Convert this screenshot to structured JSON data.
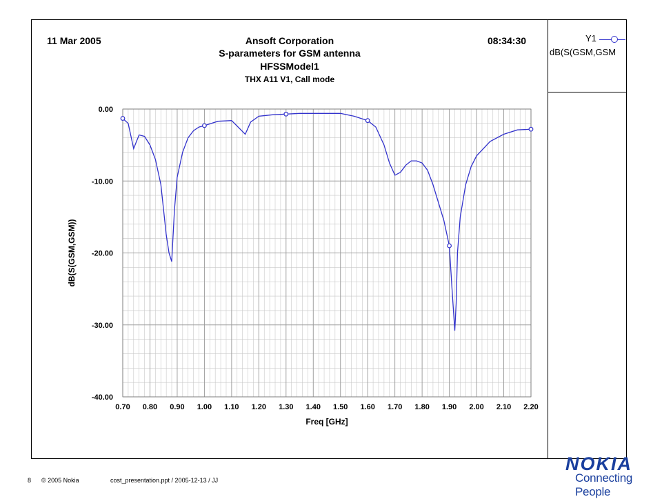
{
  "header": {
    "date": "11 Mar 2005",
    "time": "08:34:30",
    "company": "Ansoft Corporation",
    "title": "S-parameters for GSM antenna",
    "model": "HFSSModel1",
    "subtitle": "THX A11 V1, Call mode"
  },
  "legend": {
    "trace_name": "Y1",
    "expression": "dB(S(GSM,GSM"
  },
  "footer": {
    "page": "8",
    "copyright": "© 2005  Nokia",
    "file": "cost_presentation.ppt / 2005-12-13 / JJ"
  },
  "brand": {
    "logo_text": "NOKIA",
    "tagline": "Connecting People",
    "color": "#1a3f9e"
  },
  "chart_data": {
    "type": "line",
    "xlabel": "Freq [GHz]",
    "ylabel": "dB(S(GSM,GSM))",
    "xlim": [
      0.7,
      2.2
    ],
    "ylim": [
      -40.0,
      0.0
    ],
    "xticks": [
      "0.70",
      "0.80",
      "0.90",
      "1.00",
      "1.10",
      "1.20",
      "1.30",
      "1.40",
      "1.50",
      "1.60",
      "1.70",
      "1.80",
      "1.90",
      "2.00",
      "2.10",
      "2.20"
    ],
    "yticks": [
      "0.00",
      "-10.00",
      "-20.00",
      "-30.00",
      "-40.00"
    ],
    "grid": true,
    "series_color": "#3333cc",
    "series": [
      {
        "name": "dB(S(GSM,GSM",
        "x": [
          0.7,
          0.72,
          0.74,
          0.76,
          0.78,
          0.8,
          0.82,
          0.84,
          0.86,
          0.87,
          0.88,
          0.89,
          0.9,
          0.92,
          0.94,
          0.96,
          0.98,
          1.0,
          1.05,
          1.1,
          1.15,
          1.17,
          1.2,
          1.25,
          1.3,
          1.35,
          1.4,
          1.45,
          1.5,
          1.55,
          1.6,
          1.63,
          1.66,
          1.68,
          1.7,
          1.72,
          1.74,
          1.76,
          1.78,
          1.8,
          1.82,
          1.84,
          1.86,
          1.88,
          1.9,
          1.91,
          1.92,
          1.925,
          1.93,
          1.94,
          1.96,
          1.98,
          2.0,
          2.05,
          2.1,
          2.15,
          2.2
        ],
        "values": [
          -1.3,
          -2.0,
          -5.5,
          -3.6,
          -3.8,
          -5.0,
          -7.0,
          -10.5,
          -17.5,
          -20.0,
          -21.2,
          -14.0,
          -9.5,
          -6.0,
          -4.0,
          -3.0,
          -2.5,
          -2.3,
          -1.7,
          -1.6,
          -3.5,
          -1.8,
          -1.0,
          -0.8,
          -0.7,
          -0.6,
          -0.6,
          -0.6,
          -0.6,
          -1.0,
          -1.6,
          -2.5,
          -5.0,
          -7.5,
          -9.2,
          -8.8,
          -7.8,
          -7.2,
          -7.2,
          -7.5,
          -8.5,
          -10.5,
          -13.0,
          -15.5,
          -19.0,
          -25.0,
          -30.8,
          -27.0,
          -20.0,
          -15.0,
          -10.5,
          -8.0,
          -6.5,
          -4.5,
          -3.5,
          -2.9,
          -2.8
        ]
      }
    ],
    "markers": [
      {
        "x": 0.7,
        "y": -1.3
      },
      {
        "x": 1.0,
        "y": -2.3
      },
      {
        "x": 1.3,
        "y": -0.7
      },
      {
        "x": 1.6,
        "y": -1.6
      },
      {
        "x": 1.9,
        "y": -19.0
      },
      {
        "x": 2.2,
        "y": -2.8
      }
    ]
  }
}
